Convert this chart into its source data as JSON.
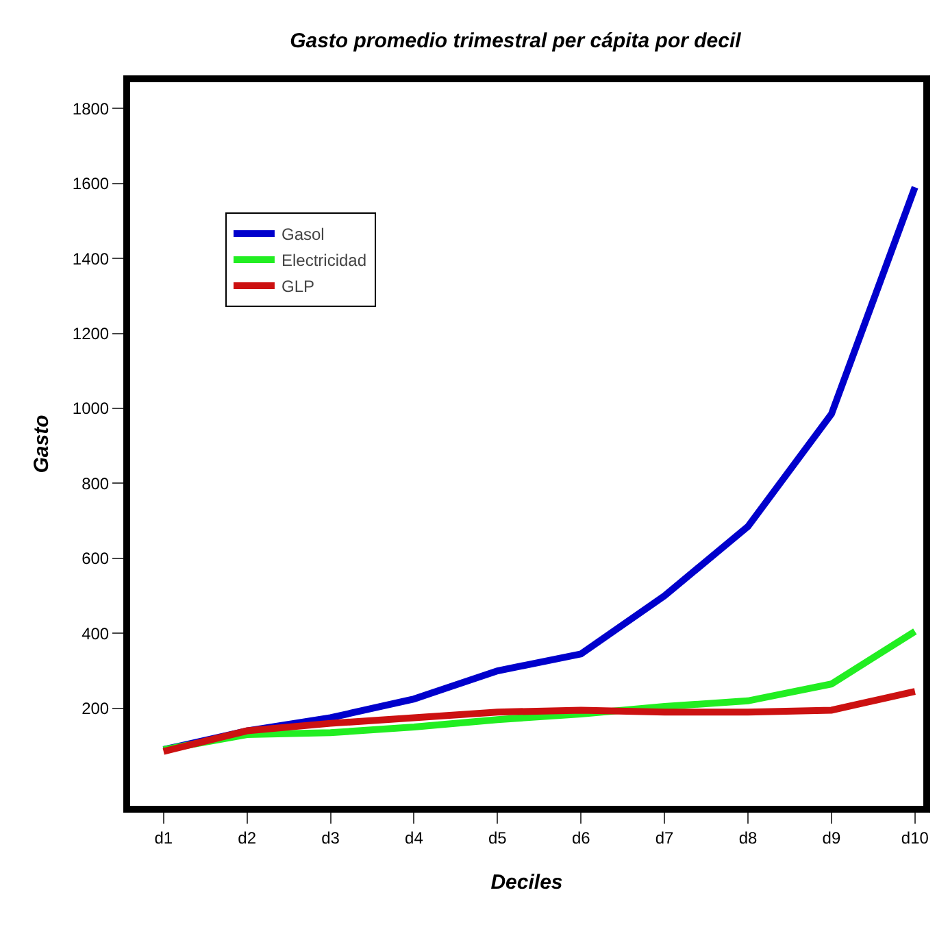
{
  "chart_data": {
    "type": "line",
    "title": "Gasto promedio trimestral per cápita por decil",
    "xlabel": "Deciles",
    "ylabel": "Gasto",
    "categories": [
      "d1",
      "d2",
      "d3",
      "d4",
      "d5",
      "d6",
      "d7",
      "d8",
      "d9",
      "d10"
    ],
    "series": [
      {
        "name": "Gasol",
        "color": "#0000cc",
        "values": [
          90,
          140,
          175,
          225,
          300,
          345,
          500,
          685,
          985,
          1590
        ]
      },
      {
        "name": "Electricidad",
        "color": "#22ee22",
        "values": [
          90,
          130,
          135,
          150,
          170,
          185,
          205,
          220,
          265,
          405
        ]
      },
      {
        "name": "GLP",
        "color": "#cc1111",
        "values": [
          85,
          140,
          160,
          175,
          190,
          195,
          190,
          190,
          195,
          245
        ]
      }
    ],
    "ylim": [
      -60,
      1870
    ],
    "yticks": [
      200,
      400,
      600,
      800,
      1000,
      1200,
      1400,
      1600,
      1800
    ],
    "grid": false,
    "legend": "top left",
    "marker": "none",
    "line_style": "solid"
  }
}
